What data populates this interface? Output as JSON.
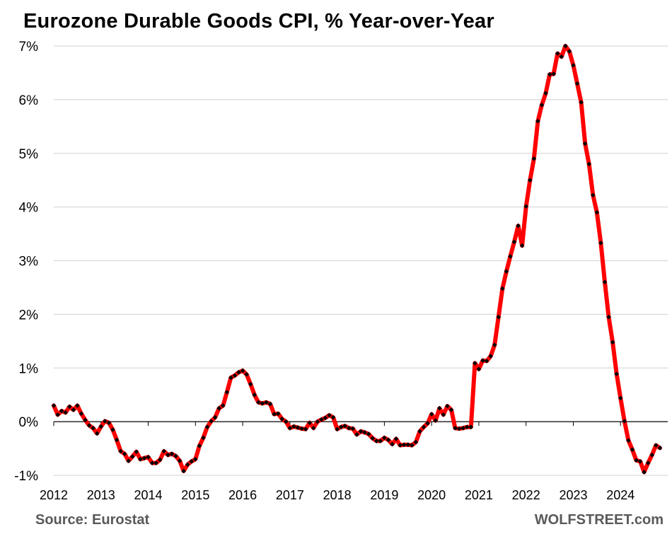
{
  "chart_data": {
    "type": "line",
    "title": "Eurozone Durable Goods CPI, % Year-over-Year",
    "xlabel": "",
    "ylabel": "",
    "ylim": [
      -1,
      7
    ],
    "y_ticks": [
      "-1%",
      "0%",
      "1%",
      "2%",
      "3%",
      "4%",
      "5%",
      "6%",
      "7%"
    ],
    "x_ticks": [
      "2012",
      "2013",
      "2014",
      "2015",
      "2016",
      "2017",
      "2018",
      "2019",
      "2020",
      "2021",
      "2022",
      "2023",
      "2024"
    ],
    "grid": true,
    "legend": "none",
    "series": [
      {
        "name": "Durable Goods CPI YoY",
        "color": "#ff0000",
        "marker_color": "#000000",
        "start": "2012-01",
        "values": [
          0.3,
          0.13,
          0.2,
          0.17,
          0.28,
          0.22,
          0.3,
          0.15,
          0.03,
          -0.07,
          -0.12,
          -0.22,
          -0.09,
          0.01,
          -0.02,
          -0.15,
          -0.34,
          -0.55,
          -0.6,
          -0.73,
          -0.65,
          -0.56,
          -0.7,
          -0.68,
          -0.66,
          -0.77,
          -0.77,
          -0.71,
          -0.55,
          -0.62,
          -0.6,
          -0.64,
          -0.73,
          -0.92,
          -0.8,
          -0.74,
          -0.7,
          -0.45,
          -0.3,
          -0.1,
          0.01,
          0.08,
          0.25,
          0.3,
          0.55,
          0.82,
          0.86,
          0.92,
          0.95,
          0.88,
          0.7,
          0.5,
          0.36,
          0.34,
          0.36,
          0.33,
          0.14,
          0.15,
          0.05,
          0.0,
          -0.12,
          -0.09,
          -0.11,
          -0.13,
          -0.14,
          -0.02,
          -0.12,
          0.0,
          0.04,
          0.07,
          0.12,
          0.08,
          -0.14,
          -0.1,
          -0.08,
          -0.12,
          -0.13,
          -0.24,
          -0.18,
          -0.2,
          -0.23,
          -0.31,
          -0.36,
          -0.36,
          -0.3,
          -0.34,
          -0.42,
          -0.32,
          -0.44,
          -0.43,
          -0.43,
          -0.44,
          -0.38,
          -0.18,
          -0.1,
          -0.03,
          0.14,
          0.02,
          0.25,
          0.13,
          0.29,
          0.22,
          -0.12,
          -0.13,
          -0.12,
          -0.1,
          -0.1,
          1.09,
          0.98,
          1.14,
          1.13,
          1.22,
          1.43,
          1.95,
          2.48,
          2.8,
          3.08,
          3.35,
          3.65,
          3.28,
          4.01,
          4.5,
          4.9,
          5.6,
          5.9,
          6.12,
          6.47,
          6.48,
          6.86,
          6.8,
          7.0,
          6.9,
          6.64,
          6.3,
          5.95,
          5.18,
          4.8,
          4.22,
          3.9,
          3.33,
          2.6,
          1.95,
          1.48,
          0.89,
          0.44,
          0.01,
          -0.35,
          -0.52,
          -0.72,
          -0.74,
          -0.94,
          -0.77,
          -0.62,
          -0.44,
          -0.49
        ]
      }
    ]
  },
  "footer": {
    "source": "Source: Eurostat",
    "brand": "WOLFSTREET.com"
  }
}
